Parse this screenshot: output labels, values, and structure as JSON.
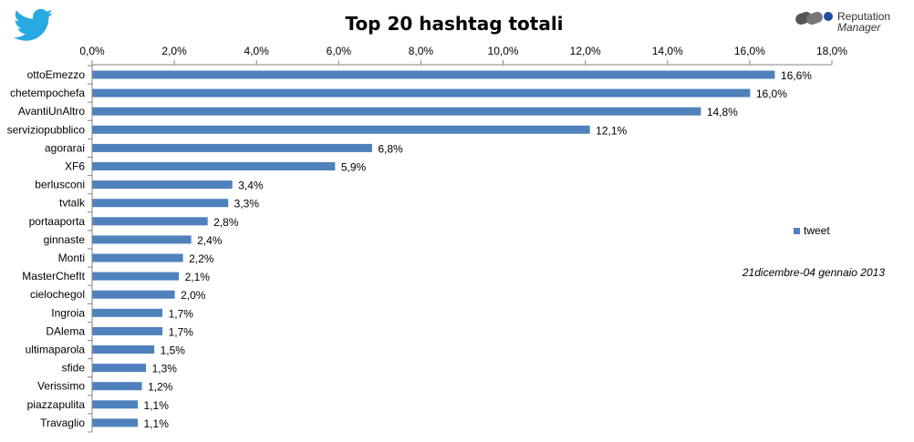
{
  "chart_data": {
    "type": "bar",
    "orientation": "horizontal",
    "title": "Top 20 hashtag totali",
    "categories": [
      "ottoEmezzo",
      "chetempochefa",
      "AvantiUnAltro",
      "serviziopubblico",
      "agorarai",
      "XF6",
      "berlusconi",
      "tvtalk",
      "portaaporta",
      "ginnaste",
      "Monti",
      "MasterChefIt",
      "cielochegol",
      "Ingroia",
      "DAlema",
      "ultimaparola",
      "sfide",
      "Verissimo",
      "piazzapulita",
      "Travaglio"
    ],
    "series": [
      {
        "name": "tweet",
        "values": [
          16.6,
          16.0,
          14.8,
          12.1,
          6.8,
          5.9,
          3.4,
          3.3,
          2.8,
          2.4,
          2.2,
          2.1,
          2.0,
          1.7,
          1.7,
          1.5,
          1.3,
          1.2,
          1.1,
          1.1
        ],
        "labels": [
          "16,6%",
          "16,0%",
          "14,8%",
          "12,1%",
          "6,8%",
          "5,9%",
          "3,4%",
          "3,3%",
          "2,8%",
          "2,4%",
          "2,2%",
          "2,1%",
          "2,0%",
          "1,7%",
          "1,7%",
          "1,5%",
          "1,3%",
          "1,2%",
          "1,1%",
          "1,1%"
        ]
      }
    ],
    "xlim": [
      0,
      18
    ],
    "x_ticks": [
      0,
      2,
      4,
      6,
      8,
      10,
      12,
      14,
      16,
      18
    ],
    "x_tick_labels": [
      "0,0%",
      "2,0%",
      "4,0%",
      "6,0%",
      "8,0%",
      "10,0%",
      "12,0%",
      "14,0%",
      "16,0%",
      "18,0%"
    ],
    "x_axis_position": "top",
    "grid": false,
    "legend_position": "right",
    "annotation": "21dicembre-04 gennaio 2013"
  },
  "brand": {
    "logo_line1": "Reputation",
    "logo_line2": "Manager",
    "twitter_icon": "twitter-bird-icon"
  },
  "colors": {
    "bar": "#4f81bd",
    "twitter": "#29a9e1",
    "text": "#000000"
  }
}
